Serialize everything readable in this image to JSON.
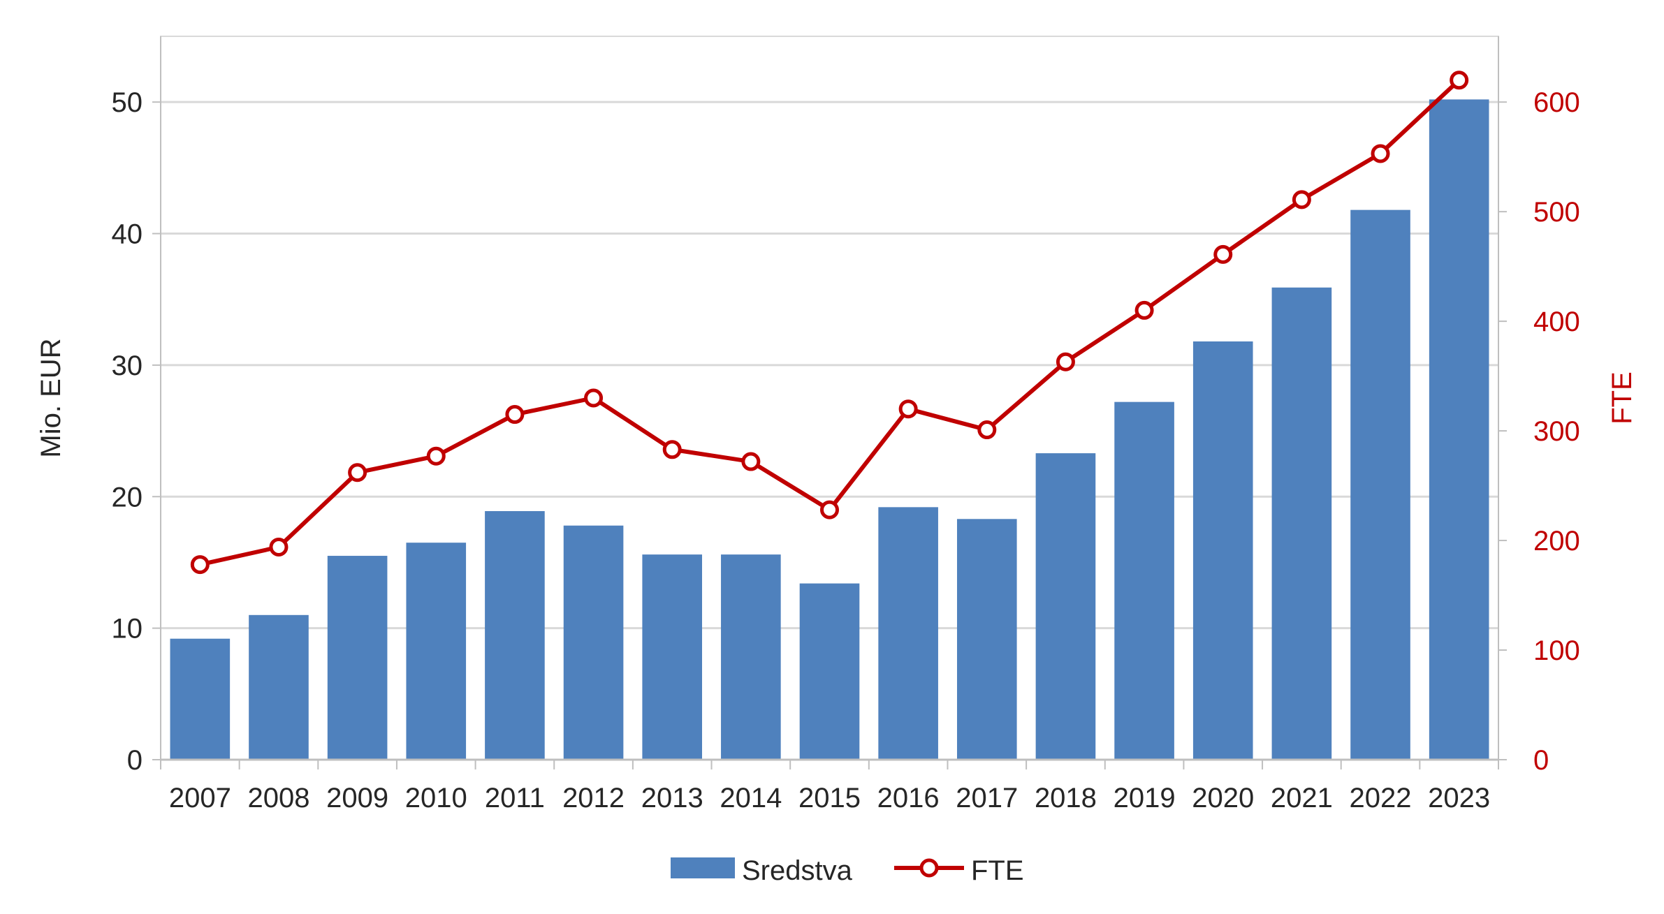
{
  "colors": {
    "bar": "#4F81BD",
    "line": "#C00000",
    "marker_fill": "#FFFFFF",
    "grid": "#D9D9D9",
    "axis": "#BFBFBF",
    "text": "#262626"
  },
  "chart_data": {
    "type": "bar",
    "categories": [
      "2007",
      "2008",
      "2009",
      "2010",
      "2011",
      "2012",
      "2013",
      "2014",
      "2015",
      "2016",
      "2017",
      "2018",
      "2019",
      "2020",
      "2021",
      "2022",
      "2023"
    ],
    "series": [
      {
        "name": "Sredstva",
        "type": "bar",
        "axis": "left",
        "values": [
          9.2,
          11.0,
          15.5,
          16.5,
          18.9,
          17.8,
          15.6,
          15.6,
          13.4,
          19.2,
          18.3,
          23.3,
          27.2,
          31.8,
          35.9,
          41.8,
          50.2
        ]
      },
      {
        "name": "FTE",
        "type": "line",
        "axis": "right",
        "marker": "circle-open",
        "values": [
          178,
          194,
          262,
          277,
          315,
          330,
          283,
          272,
          228,
          320,
          301,
          363,
          410,
          461,
          511,
          553,
          620
        ]
      }
    ],
    "ylabel": "Mio. EUR",
    "y2label": "FTE",
    "ylim": [
      0,
      55
    ],
    "y2lim": [
      0,
      660
    ],
    "yticks": [
      0,
      10,
      20,
      30,
      40,
      50
    ],
    "y2ticks": [
      0,
      100,
      200,
      300,
      400,
      500,
      600
    ],
    "grid": true,
    "legend_position": "bottom-center"
  }
}
